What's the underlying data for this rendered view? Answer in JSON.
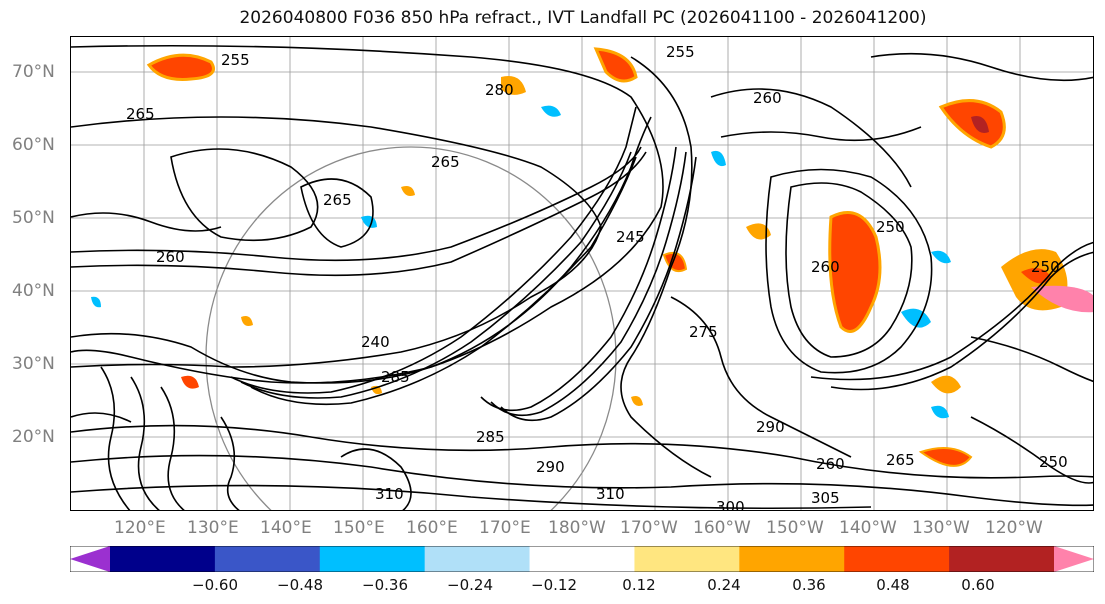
{
  "title": "2026040800 F036 850 hPa refract., IVT Landfall PC (2026041100 - 2026041200)",
  "lat_labels": [
    "70°N",
    "60°N",
    "50°N",
    "40°N",
    "30°N",
    "20°N"
  ],
  "lon_labels": [
    "120°E",
    "130°E",
    "140°E",
    "150°E",
    "160°E",
    "170°E",
    "180°W",
    "170°W",
    "160°W",
    "150°W",
    "140°W",
    "130°W",
    "120°W"
  ],
  "colorbar": {
    "ticks": [
      "−0.60",
      "−0.48",
      "−0.36",
      "−0.24",
      "−0.12",
      "0.12",
      "0.24",
      "0.36",
      "0.48",
      "0.60"
    ],
    "colors": [
      "#9b30d0",
      "#00008b",
      "#3a56c8",
      "#00bfff",
      "#b0e0f8",
      "#ffffff",
      "#ffe680",
      "#ffa500",
      "#ff4500",
      "#b22222",
      "#ff82ab"
    ]
  },
  "contour_labels": [
    "255",
    "260",
    "265",
    "265",
    "260",
    "265",
    "255",
    "250",
    "245",
    "240",
    "260",
    "250",
    "285",
    "290",
    "310",
    "310",
    "300",
    "305",
    "290",
    "285",
    "260",
    "265",
    "275",
    "280",
    "250"
  ]
}
